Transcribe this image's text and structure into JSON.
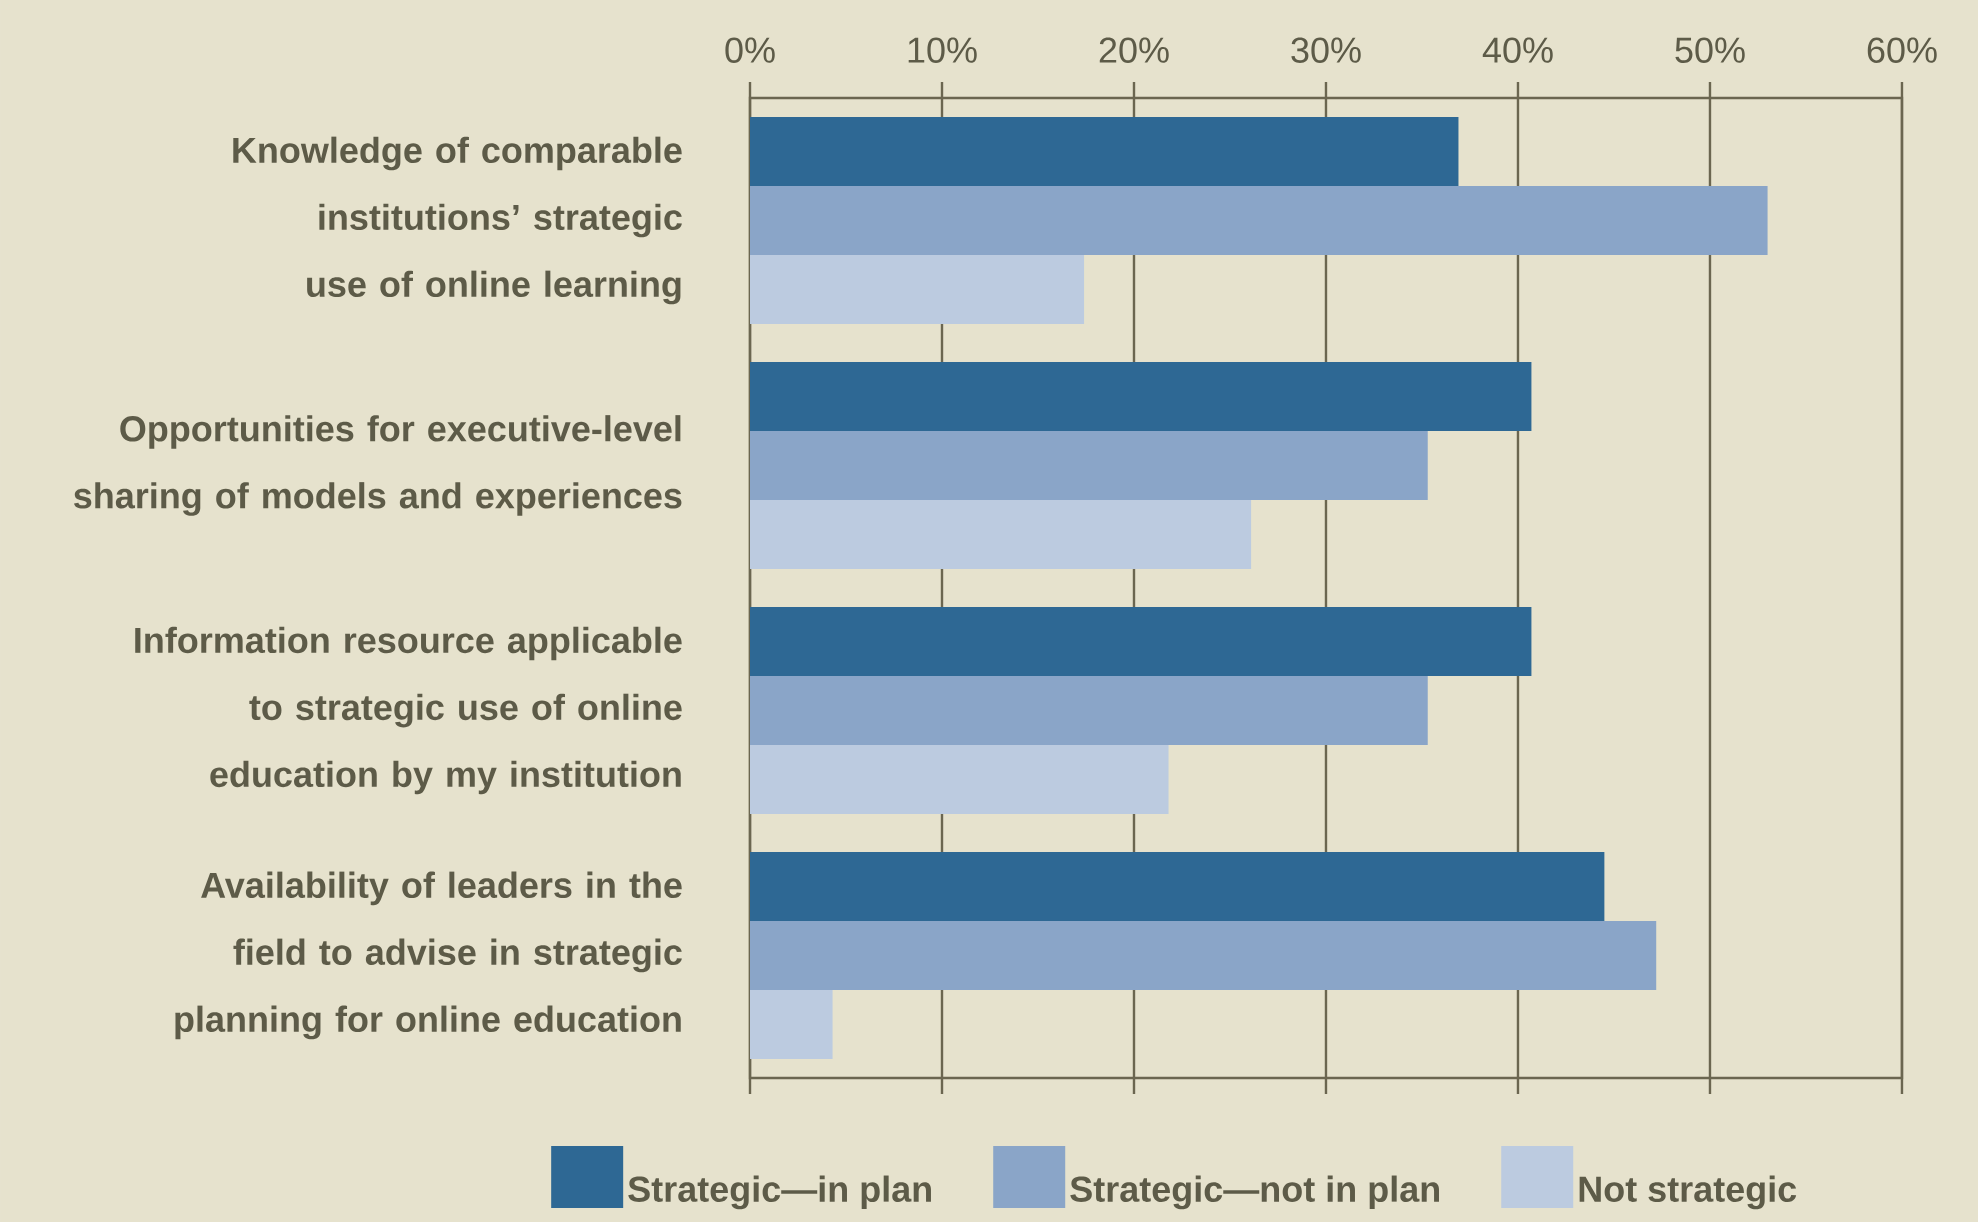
{
  "chart_data": {
    "type": "bar",
    "orientation": "horizontal",
    "categories": [
      "Knowledge of comparable institutions’ strategic use of online learning",
      "Opportunities for executive-level sharing of models and experiences",
      "Information resource applicable to strategic use of online education by my institution",
      "Availability of leaders in the field to advise in strategic planning for online education"
    ],
    "series": [
      {
        "name": "Strategic—in plan",
        "color": "#2e6894",
        "values": [
          36.9,
          40.7,
          40.7,
          44.5
        ]
      },
      {
        "name": "Strategic—not in plan",
        "color": "#8aa5c8",
        "values": [
          53.0,
          35.3,
          35.3,
          47.2
        ]
      },
      {
        "name": "Not strategic",
        "color": "#bccbe0",
        "values": [
          17.4,
          26.1,
          21.8,
          4.3
        ]
      }
    ],
    "xlim": [
      0,
      60
    ],
    "xticks": [
      {
        "value": 0,
        "label": "0%"
      },
      {
        "value": 10,
        "label": "10%"
      },
      {
        "value": 20,
        "label": "20%"
      },
      {
        "value": 30,
        "label": "30%"
      },
      {
        "value": 40,
        "label": "40%"
      },
      {
        "value": 50,
        "label": "50%"
      },
      {
        "value": 60,
        "label": "60%"
      }
    ],
    "grid": "x",
    "legend": "bottom"
  }
}
